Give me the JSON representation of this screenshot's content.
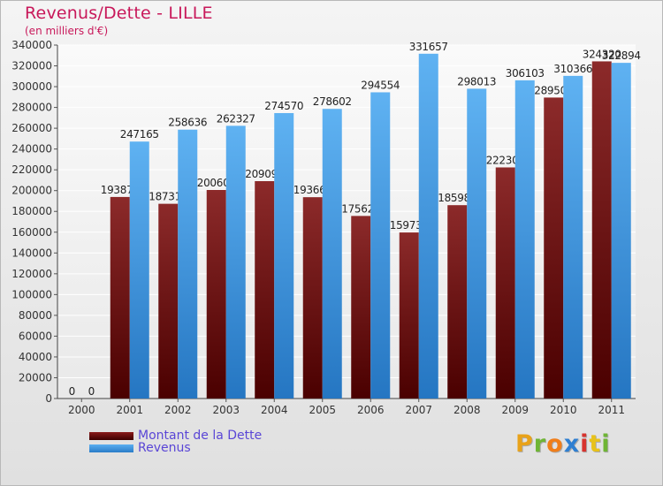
{
  "title": "Revenus/Dette - LILLE",
  "subtitle": "(en milliers d'€)",
  "logo": {
    "text": "Proxiti",
    "letters": [
      "P",
      "r",
      "o",
      "x",
      "i",
      "t",
      "i"
    ],
    "colors": [
      "#e8a21a",
      "#6fb535",
      "#f07e1a",
      "#2f7fd1",
      "#d7332e",
      "#e8c21a",
      "#6fb535"
    ]
  },
  "chart_data": {
    "type": "bar",
    "title": "Revenus/Dette - LILLE",
    "subtitle": "(en milliers d'€)",
    "categories": [
      "2000",
      "2001",
      "2002",
      "2003",
      "2004",
      "2005",
      "2006",
      "2007",
      "2008",
      "2009",
      "2010",
      "2011"
    ],
    "series": [
      {
        "name": "Montant de la Dette",
        "color": "#6a0d0d",
        "values": [
          0,
          193879,
          187319,
          200600,
          209096,
          193663,
          175620,
          159736,
          185987,
          222300,
          289505,
          324320
        ],
        "labels": [
          "0",
          "193879",
          "187319",
          "200600",
          "209096",
          "193663",
          "175620",
          "159736",
          "185987",
          "222300",
          "289505",
          "324320"
        ]
      },
      {
        "name": "Revenus",
        "color": "#3a92dc",
        "values": [
          0,
          247165,
          258636,
          262327,
          274570,
          278602,
          294554,
          331657,
          298013,
          306103,
          310366,
          322894
        ],
        "labels": [
          "0",
          "247165",
          "258636",
          "262327",
          "274570",
          "278602",
          "294554",
          "331657",
          "298013",
          "306103",
          "310366",
          "322894"
        ]
      }
    ],
    "ylim": [
      0,
      340000
    ],
    "yticks": [
      0,
      20000,
      40000,
      60000,
      80000,
      100000,
      120000,
      140000,
      160000,
      180000,
      200000,
      220000,
      240000,
      260000,
      280000,
      300000,
      320000,
      340000
    ],
    "grid": true,
    "legend_position": "bottom-left"
  }
}
